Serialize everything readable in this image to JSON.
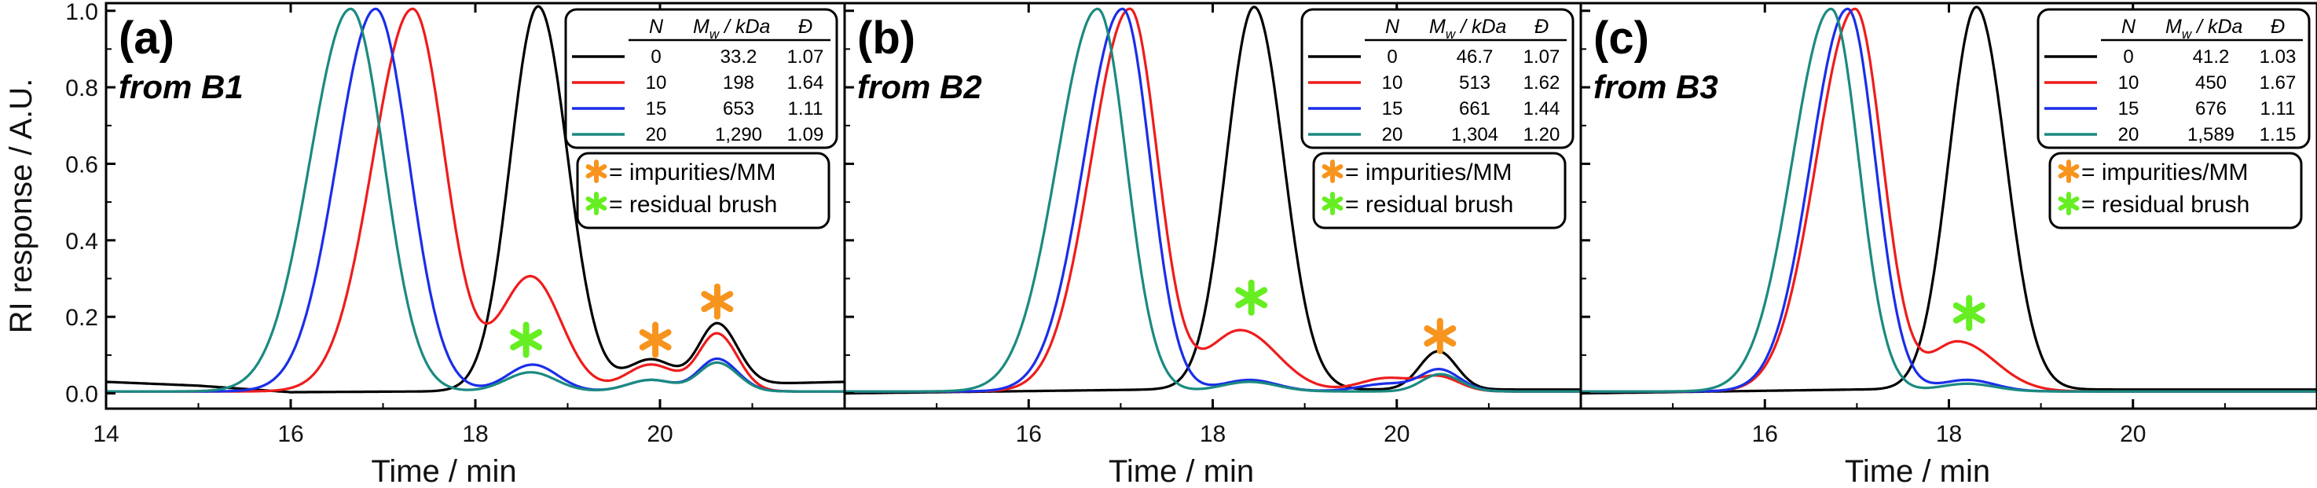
{
  "colors": {
    "black": "#000000",
    "red": "#ee1c1c",
    "blue": "#1a2ee8",
    "teal": "#1b8a80",
    "orange": "#f7941d",
    "green": "#66ee22"
  },
  "figure": {
    "ylabel": "RI response / A.U.",
    "xlabel": "Time / min",
    "y_ticks": [
      "0.0",
      "0.2",
      "0.4",
      "0.6",
      "0.8",
      "1.0"
    ]
  },
  "chart_data": [
    {
      "type": "line",
      "panel": "(a)",
      "subtitle": "from B1",
      "xlabel": "Time / min",
      "ylabel": "RI response / A.U.",
      "xlim": [
        14,
        22
      ],
      "ylim": [
        -0.04,
        1.02
      ],
      "x_ticks": [
        "14",
        "16",
        "18",
        "20"
      ],
      "table": {
        "headers": [
          "N",
          "M",
          "w",
          " / kDa",
          "Đ"
        ],
        "rows": [
          {
            "n": "0",
            "mw": "33.2",
            "d": "1.07",
            "color": "#000000"
          },
          {
            "n": "10",
            "mw": "198",
            "d": "1.64",
            "color": "#ee1c1c"
          },
          {
            "n": "15",
            "mw": "653",
            "d": "1.11",
            "color": "#1a2ee8"
          },
          {
            "n": "20",
            "mw": "1,290",
            "d": "1.09",
            "color": "#1b8a80"
          }
        ]
      },
      "legend": [
        {
          "symbol": "*",
          "color": "#f7941d",
          "label": "= impurities/MM"
        },
        {
          "symbol": "*",
          "color": "#66ee22",
          "label": "= residual brush"
        }
      ],
      "markers": [
        {
          "symbol": "*",
          "color": "#66ee22",
          "x": 18.55,
          "y": 0.14
        },
        {
          "symbol": "*",
          "color": "#f7941d",
          "x": 19.95,
          "y": 0.14
        },
        {
          "symbol": "*",
          "color": "#f7941d",
          "x": 20.62,
          "y": 0.24
        }
      ],
      "series": [
        {
          "name": "N = 0",
          "color": "#000000",
          "baseline": [
            [
              14,
              0.03
            ],
            [
              15,
              0.02
            ],
            [
              16,
              0.003
            ],
            [
              17.5,
              0.005
            ],
            [
              22,
              0.03
            ]
          ],
          "peaks": [
            [
              18.68,
              1.0,
              0.3,
              0.32
            ],
            [
              19.9,
              0.07,
              0.25,
              0.25
            ],
            [
              20.62,
              0.16,
              0.2,
              0.22
            ]
          ]
        },
        {
          "name": "N = 10",
          "color": "#ee1c1c",
          "baseline": [
            [
              14,
              0.005
            ],
            [
              22,
              0.005
            ]
          ],
          "peaks": [
            [
              17.32,
              1.0,
              0.43,
              0.35
            ],
            [
              18.6,
              0.3,
              0.33,
              0.33
            ],
            [
              19.9,
              0.07,
              0.27,
              0.27
            ],
            [
              20.62,
              0.15,
              0.2,
              0.22
            ]
          ]
        },
        {
          "name": "N = 15",
          "color": "#1a2ee8",
          "baseline": [
            [
              14,
              0.005
            ],
            [
              22,
              0.005
            ]
          ],
          "peaks": [
            [
              16.92,
              1.0,
              0.42,
              0.36
            ],
            [
              18.62,
              0.07,
              0.27,
              0.27
            ],
            [
              19.9,
              0.03,
              0.25,
              0.25
            ],
            [
              20.62,
              0.085,
              0.2,
              0.22
            ]
          ]
        },
        {
          "name": "N = 20",
          "color": "#1b8a80",
          "baseline": [
            [
              14,
              0.005
            ],
            [
              22,
              0.005
            ]
          ],
          "peaks": [
            [
              16.65,
              1.0,
              0.44,
              0.36
            ],
            [
              18.6,
              0.05,
              0.27,
              0.27
            ],
            [
              19.9,
              0.03,
              0.25,
              0.25
            ],
            [
              20.62,
              0.075,
              0.2,
              0.22
            ]
          ]
        }
      ]
    },
    {
      "type": "line",
      "panel": "(b)",
      "subtitle": "from B2",
      "xlabel": "Time / min",
      "ylabel": "RI response / A.U.",
      "xlim": [
        14,
        22
      ],
      "ylim": [
        -0.04,
        1.02
      ],
      "x_ticks": [
        "16",
        "18",
        "20"
      ],
      "table": {
        "headers": [
          "N",
          "M",
          "w",
          " / kDa",
          "Đ"
        ],
        "rows": [
          {
            "n": "0",
            "mw": "46.7",
            "d": "1.07",
            "color": "#000000"
          },
          {
            "n": "10",
            "mw": "513",
            "d": "1.62",
            "color": "#ee1c1c"
          },
          {
            "n": "15",
            "mw": "661",
            "d": "1.44",
            "color": "#1a2ee8"
          },
          {
            "n": "20",
            "mw": "1,304",
            "d": "1.20",
            "color": "#1b8a80"
          }
        ]
      },
      "legend": [
        {
          "symbol": "*",
          "color": "#f7941d",
          "label": "= impurities/MM"
        },
        {
          "symbol": "*",
          "color": "#66ee22",
          "label": "= residual brush"
        }
      ],
      "markers": [
        {
          "symbol": "*",
          "color": "#66ee22",
          "x": 18.42,
          "y": 0.25
        },
        {
          "symbol": "*",
          "color": "#f7941d",
          "x": 20.47,
          "y": 0.15
        }
      ],
      "series": [
        {
          "name": "N = 0",
          "color": "#000000",
          "baseline": [
            [
              14,
              0.0
            ],
            [
              17.4,
              0.01
            ],
            [
              22,
              0.01
            ]
          ],
          "peaks": [
            [
              18.45,
              1.0,
              0.3,
              0.32
            ],
            [
              20.45,
              0.1,
              0.2,
              0.2
            ]
          ]
        },
        {
          "name": "N = 10",
          "color": "#ee1c1c",
          "baseline": [
            [
              14,
              0.005
            ],
            [
              22,
              0.005
            ]
          ],
          "peaks": [
            [
              17.1,
              1.0,
              0.42,
              0.3
            ],
            [
              18.3,
              0.16,
              0.35,
              0.4
            ],
            [
              19.9,
              0.035,
              0.3,
              0.3
            ],
            [
              20.47,
              0.035,
              0.2,
              0.22
            ]
          ]
        },
        {
          "name": "N = 15",
          "color": "#1a2ee8",
          "baseline": [
            [
              14,
              0.005
            ],
            [
              22,
              0.005
            ]
          ],
          "peaks": [
            [
              17.02,
              1.0,
              0.42,
              0.3
            ],
            [
              18.4,
              0.03,
              0.3,
              0.3
            ],
            [
              19.9,
              0.02,
              0.3,
              0.3
            ],
            [
              20.47,
              0.055,
              0.2,
              0.22
            ]
          ]
        },
        {
          "name": "N = 20",
          "color": "#1b8a80",
          "baseline": [
            [
              14,
              0.005
            ],
            [
              22,
              0.005
            ]
          ],
          "peaks": [
            [
              16.75,
              1.0,
              0.44,
              0.31
            ],
            [
              18.4,
              0.025,
              0.3,
              0.3
            ],
            [
              20.47,
              0.045,
              0.2,
              0.22
            ]
          ]
        }
      ]
    },
    {
      "type": "line",
      "panel": "(c)",
      "subtitle": "from B3",
      "xlabel": "Time / min",
      "ylabel": "RI response / A.U.",
      "xlim": [
        14,
        22
      ],
      "ylim": [
        -0.04,
        1.02
      ],
      "x_ticks": [
        "16",
        "18",
        "20"
      ],
      "table": {
        "headers": [
          "N",
          "M",
          "w",
          " / kDa",
          "Đ"
        ],
        "rows": [
          {
            "n": "0",
            "mw": "41.2",
            "d": "1.03",
            "color": "#000000"
          },
          {
            "n": "10",
            "mw": "450",
            "d": "1.67",
            "color": "#ee1c1c"
          },
          {
            "n": "15",
            "mw": "676",
            "d": "1.11",
            "color": "#1a2ee8"
          },
          {
            "n": "20",
            "mw": "1,589",
            "d": "1.15",
            "color": "#1b8a80"
          }
        ]
      },
      "legend": [
        {
          "symbol": "*",
          "color": "#f7941d",
          "label": "= impurities/MM"
        },
        {
          "symbol": "*",
          "color": "#66ee22",
          "label": "= residual brush"
        }
      ],
      "markers": [
        {
          "symbol": "*",
          "color": "#66ee22",
          "x": 18.22,
          "y": 0.21
        }
      ],
      "series": [
        {
          "name": "N = 0",
          "color": "#000000",
          "baseline": [
            [
              14,
              0.0
            ],
            [
              17.0,
              0.01
            ],
            [
              22,
              0.01
            ]
          ],
          "peaks": [
            [
              18.3,
              1.0,
              0.3,
              0.32
            ]
          ]
        },
        {
          "name": "N = 10",
          "color": "#ee1c1c",
          "baseline": [
            [
              14,
              0.005
            ],
            [
              22,
              0.005
            ]
          ],
          "peaks": [
            [
              16.98,
              1.0,
              0.42,
              0.3
            ],
            [
              18.1,
              0.13,
              0.3,
              0.4
            ]
          ]
        },
        {
          "name": "N = 15",
          "color": "#1a2ee8",
          "baseline": [
            [
              14,
              0.005
            ],
            [
              22,
              0.005
            ]
          ],
          "peaks": [
            [
              16.9,
              1.0,
              0.4,
              0.3
            ],
            [
              18.2,
              0.03,
              0.3,
              0.3
            ]
          ]
        },
        {
          "name": "N = 20",
          "color": "#1b8a80",
          "baseline": [
            [
              14,
              0.005
            ],
            [
              22,
              0.005
            ]
          ],
          "peaks": [
            [
              16.72,
              1.0,
              0.42,
              0.3
            ],
            [
              18.2,
              0.02,
              0.3,
              0.3
            ]
          ]
        }
      ]
    }
  ]
}
